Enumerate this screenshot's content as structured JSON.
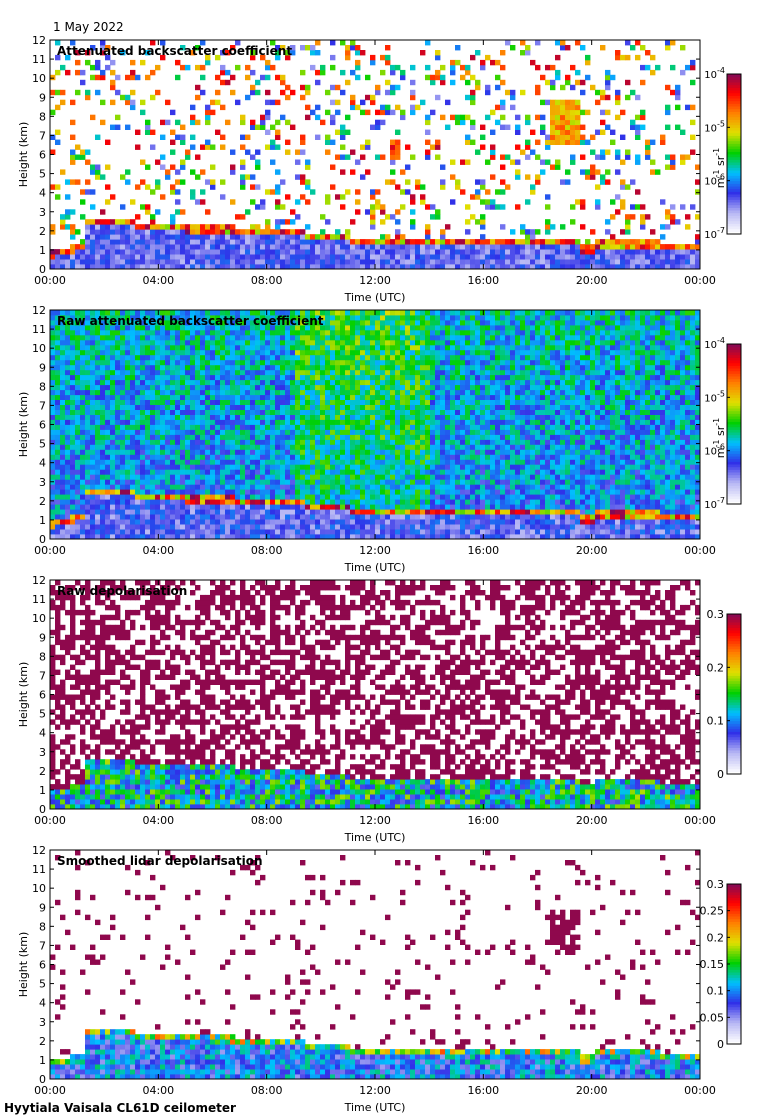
{
  "date": "1 May 2022",
  "footer": "Hyytiala Vaisala CL61D ceilometer",
  "colors": {
    "scale": [
      "#ffffff",
      "#b8b8f4",
      "#3030e8",
      "#00c0ff",
      "#00d000",
      "#e0e000",
      "#ff8000",
      "#ff0000",
      "#7a0a5c"
    ]
  },
  "chart_data": [
    {
      "type": "heatmap",
      "title": "Attenuated backscatter coefficient",
      "xlabel": "Time (UTC)",
      "ylabel": "Height (km)",
      "xticks": [
        "00:00",
        "04:00",
        "08:00",
        "12:00",
        "16:00",
        "20:00",
        "00:00"
      ],
      "yticks": [
        "0",
        "1",
        "2",
        "3",
        "4",
        "5",
        "6",
        "7",
        "8",
        "9",
        "10",
        "11",
        "12"
      ],
      "xlim": [
        0,
        24
      ],
      "ylim": [
        0,
        12
      ],
      "colorbar": {
        "scale": "log",
        "range": [
          1e-07,
          0.0001
        ],
        "tick_labels": [
          {
            "base": "10",
            "exp": "-4",
            "value": 0.0001
          },
          {
            "base": "10",
            "exp": "-5",
            "value": 1e-05
          },
          {
            "base": "10",
            "exp": "-6",
            "value": 1e-06
          },
          {
            "base": "10",
            "exp": "-7",
            "value": 1e-07
          }
        ],
        "unit": {
          "m_exp": "-1",
          "sr_exp": "-1"
        }
      }
    },
    {
      "type": "heatmap",
      "title": "Raw attenuated backscatter coefficient",
      "xlabel": "Time (UTC)",
      "ylabel": "Height (km)",
      "xticks": [
        "00:00",
        "04:00",
        "08:00",
        "12:00",
        "16:00",
        "20:00",
        "00:00"
      ],
      "yticks": [
        "0",
        "1",
        "2",
        "3",
        "4",
        "5",
        "6",
        "7",
        "8",
        "9",
        "10",
        "11",
        "12"
      ],
      "xlim": [
        0,
        24
      ],
      "ylim": [
        0,
        12
      ],
      "colorbar": {
        "scale": "log",
        "range": [
          1e-07,
          0.0001
        ],
        "tick_labels": [
          {
            "base": "10",
            "exp": "-4",
            "value": 0.0001
          },
          {
            "base": "10",
            "exp": "-5",
            "value": 1e-05
          },
          {
            "base": "10",
            "exp": "-6",
            "value": 1e-06
          },
          {
            "base": "10",
            "exp": "-7",
            "value": 1e-07
          }
        ],
        "unit": {
          "m_exp": "-1",
          "sr_exp": "-1"
        }
      }
    },
    {
      "type": "heatmap",
      "title": "Raw depolarisation",
      "xlabel": "Time (UTC)",
      "ylabel": "Height (km)",
      "xticks": [
        "00:00",
        "04:00",
        "08:00",
        "12:00",
        "16:00",
        "20:00",
        "00:00"
      ],
      "yticks": [
        "0",
        "1",
        "2",
        "3",
        "4",
        "5",
        "6",
        "7",
        "8",
        "9",
        "10",
        "11",
        "12"
      ],
      "xlim": [
        0,
        24
      ],
      "ylim": [
        0,
        12
      ],
      "colorbar": {
        "scale": "linear",
        "range": [
          0,
          0.3
        ],
        "tick_labels": [
          {
            "label": "0.3",
            "value": 0.3
          },
          {
            "label": "0.2",
            "value": 0.2
          },
          {
            "label": "0.1",
            "value": 0.1
          },
          {
            "label": "0",
            "value": 0
          }
        ]
      }
    },
    {
      "type": "heatmap",
      "title": "Smoothed lidar depolarisation",
      "xlabel": "Time (UTC)",
      "ylabel": "Height (km)",
      "xticks": [
        "00:00",
        "04:00",
        "08:00",
        "12:00",
        "16:00",
        "20:00",
        "00:00"
      ],
      "yticks": [
        "0",
        "1",
        "2",
        "3",
        "4",
        "5",
        "6",
        "7",
        "8",
        "9",
        "10",
        "11",
        "12"
      ],
      "xlim": [
        0,
        24
      ],
      "ylim": [
        0,
        12
      ],
      "colorbar": {
        "scale": "linear",
        "range": [
          0,
          0.3
        ],
        "tick_labels": [
          {
            "label": "0.3",
            "value": 0.3
          },
          {
            "label": "0.25",
            "value": 0.25
          },
          {
            "label": "0.2",
            "value": 0.2
          },
          {
            "label": "0.15",
            "value": 0.15
          },
          {
            "label": "0.1",
            "value": 0.1
          },
          {
            "label": "0.05",
            "value": 0.05
          },
          {
            "label": "0",
            "value": 0
          }
        ]
      }
    }
  ]
}
